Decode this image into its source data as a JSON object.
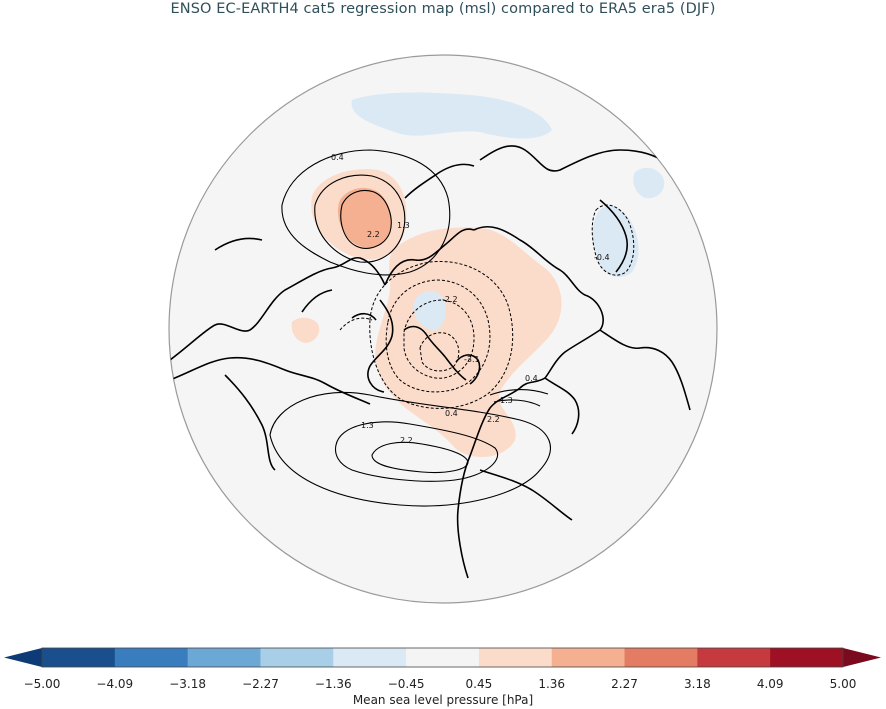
{
  "title": "ENSO EC-EARTH4 cat5 regression map (msl) compared to ERA5 era5 (DJF)",
  "colorbar": {
    "label": "Mean sea level pressure [hPa]",
    "ticks": [
      "-5.00",
      "-4.09",
      "-3.18",
      "-2.27",
      "-1.36",
      "-0.45",
      "0.45",
      "1.36",
      "2.27",
      "3.18",
      "4.09",
      "5.00"
    ],
    "colors": [
      "#1a4f8d",
      "#3a7dbf",
      "#6ca8d6",
      "#a9cfe8",
      "#dbe9f4",
      "#f4f4f4",
      "#fbdccb",
      "#f4b091",
      "#e47b63",
      "#c6393f",
      "#9e1024"
    ],
    "extend_low_color": "#0e3b75",
    "extend_high_color": "#7a0a1e"
  },
  "contour_labels": {
    "c1": "0.4",
    "c2": "1.3",
    "c3": "2.2",
    "c4": "-2.2",
    "c5": "-3.1",
    "c6": "0.4",
    "c7": "1.3",
    "c8": "1.3",
    "c9": "2.2",
    "c10": "0.4",
    "c11": "2.2",
    "c12": "-0.4"
  }
}
